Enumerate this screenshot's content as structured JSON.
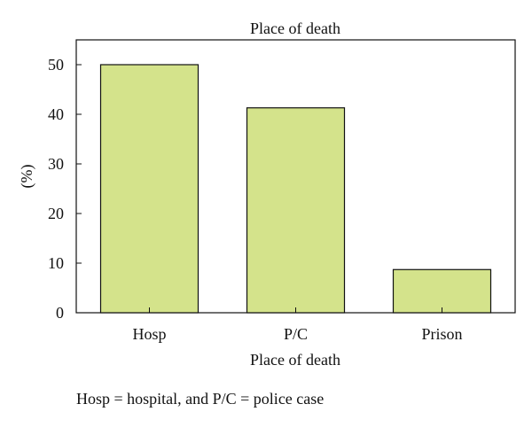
{
  "chart_data": {
    "type": "bar",
    "title": "Place of death",
    "xlabel": "Place of death",
    "ylabel": "(%)",
    "categories": [
      "Hosp",
      "P/C",
      "Prison"
    ],
    "values": [
      50,
      41.3,
      8.7
    ],
    "ylim": [
      0,
      55
    ],
    "yticks": [
      "0",
      "10",
      "20",
      "30",
      "40",
      "50"
    ],
    "grid": false,
    "legend": "none",
    "bar_color": "#d4e38b",
    "bar_edge_color": "#111111"
  },
  "footnote": "Hosp = hospital, and P/C = police case"
}
